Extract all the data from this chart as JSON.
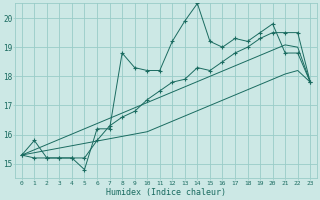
{
  "xlabel": "Humidex (Indice chaleur)",
  "bg_color": "#cce8e5",
  "grid_color": "#99ccc8",
  "line_color": "#1a6b60",
  "xlim": [
    -0.5,
    23.5
  ],
  "ylim": [
    14.5,
    20.5
  ],
  "yticks": [
    15,
    16,
    17,
    18,
    19,
    20
  ],
  "xticks": [
    0,
    1,
    2,
    3,
    4,
    5,
    6,
    7,
    8,
    9,
    10,
    11,
    12,
    13,
    14,
    15,
    16,
    17,
    18,
    19,
    20,
    21,
    22,
    23
  ],
  "series1": [
    15.3,
    15.8,
    15.2,
    15.2,
    15.2,
    14.8,
    16.2,
    16.2,
    18.8,
    18.3,
    18.2,
    18.2,
    19.2,
    19.9,
    20.5,
    19.2,
    19.0,
    19.3,
    19.2,
    19.5,
    19.8,
    18.8,
    18.8,
    17.8
  ],
  "series2": [
    15.3,
    15.2,
    15.2,
    15.2,
    15.2,
    15.2,
    15.8,
    16.3,
    16.6,
    16.8,
    17.2,
    17.5,
    17.8,
    17.9,
    18.3,
    18.2,
    18.5,
    18.8,
    19.0,
    19.3,
    19.5,
    19.5,
    19.5,
    17.8
  ],
  "series3_lin": [
    15.3,
    15.48,
    15.66,
    15.84,
    16.02,
    16.2,
    16.38,
    16.56,
    16.74,
    16.92,
    17.1,
    17.28,
    17.46,
    17.64,
    17.82,
    18.0,
    18.18,
    18.36,
    18.54,
    18.72,
    18.9,
    19.08,
    19.0,
    17.8
  ],
  "series4_lin": [
    15.3,
    15.38,
    15.46,
    15.54,
    15.62,
    15.7,
    15.78,
    15.86,
    15.94,
    16.02,
    16.1,
    16.28,
    16.46,
    16.64,
    16.82,
    17.0,
    17.18,
    17.36,
    17.54,
    17.72,
    17.9,
    18.08,
    18.2,
    17.8
  ]
}
